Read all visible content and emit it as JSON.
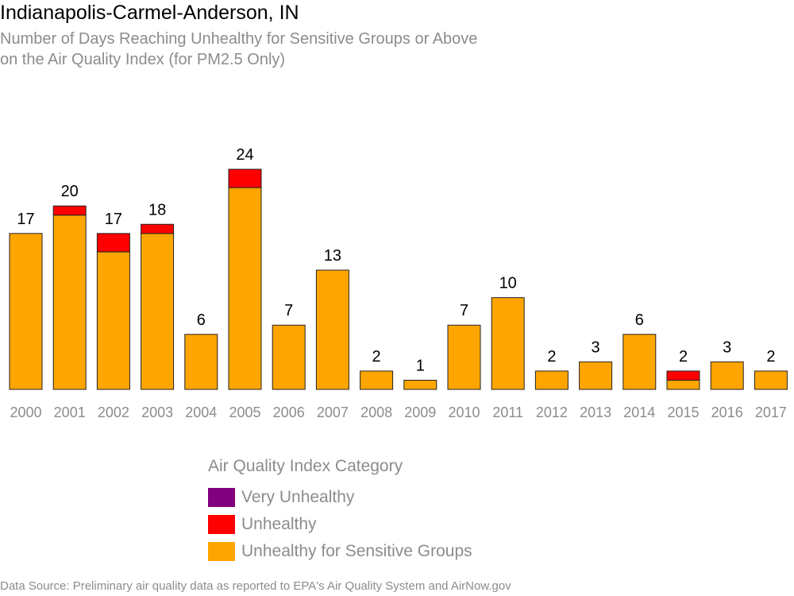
{
  "title": "Indianapolis-Carmel-Anderson, IN",
  "subtitle": {
    "line1": "Number of Days Reaching Unhealthy for Sensitive Groups or Above",
    "line2": "on the Air Quality Index (for PM2.5 Only)"
  },
  "legend": {
    "title": "Air Quality Index Category",
    "items": [
      {
        "label": "Very Unhealthy",
        "color": "#800080"
      },
      {
        "label": "Unhealthy",
        "color": "#ff0000"
      },
      {
        "label": "Unhealthy for Sensitive Groups",
        "color": "#ffa500"
      }
    ]
  },
  "source": "Data Source: Preliminary air quality data as reported to EPA's Air Quality System and AirNow.gov",
  "chart_data": {
    "type": "bar",
    "stacked": true,
    "categories": [
      "2000",
      "2001",
      "2002",
      "2003",
      "2004",
      "2005",
      "2006",
      "2007",
      "2008",
      "2009",
      "2010",
      "2011",
      "2012",
      "2013",
      "2014",
      "2015",
      "2016",
      "2017"
    ],
    "series": [
      {
        "name": "Unhealthy for Sensitive Groups",
        "color": "#ffa500",
        "values": [
          17,
          19,
          15,
          17,
          6,
          22,
          7,
          13,
          2,
          1,
          7,
          10,
          2,
          3,
          6,
          1,
          3,
          2
        ]
      },
      {
        "name": "Unhealthy",
        "color": "#ff0000",
        "values": [
          0,
          1,
          2,
          1,
          0,
          2,
          0,
          0,
          0,
          0,
          0,
          0,
          0,
          0,
          0,
          1,
          0,
          0
        ]
      },
      {
        "name": "Very Unhealthy",
        "color": "#800080",
        "values": [
          0,
          0,
          0,
          0,
          0,
          0,
          0,
          0,
          0,
          0,
          0,
          0,
          0,
          0,
          0,
          0,
          0,
          0
        ]
      }
    ],
    "totals": [
      17,
      20,
      17,
      18,
      6,
      24,
      7,
      13,
      2,
      1,
      7,
      10,
      2,
      3,
      6,
      2,
      3,
      2
    ],
    "ylim": [
      0,
      24
    ],
    "xlabel": "",
    "ylabel": "",
    "grid": false
  }
}
